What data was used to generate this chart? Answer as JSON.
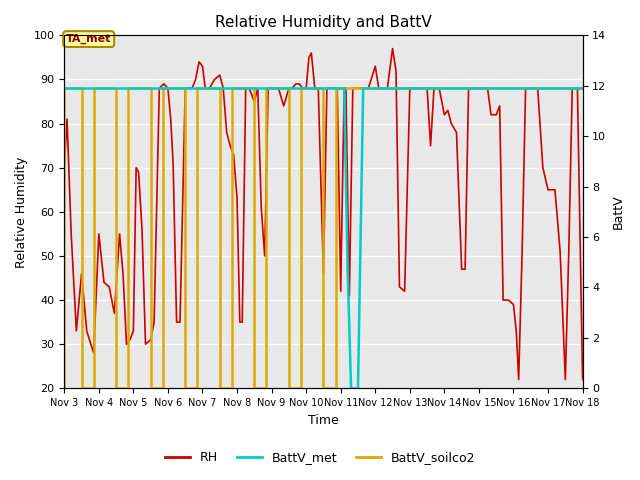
{
  "title": "Relative Humidity and BattV",
  "ylabel_left": "Relative Humidity",
  "ylabel_right": "BattV",
  "xlabel": "Time",
  "ylim_left": [
    20,
    100
  ],
  "ylim_right": [
    0,
    14
  ],
  "fig_bg_color": "#ffffff",
  "plot_bg_color": "#e8e8e8",
  "annotation_text": "TA_met",
  "annotation_color": "#880000",
  "annotation_bg": "#ffff99",
  "annotation_edge": "#aa8800",
  "rh_color": "#cc0000",
  "battv_met_color": "#00cccc",
  "battv_soilco2_color": "#ddaa00",
  "grid_color": "#ffffff",
  "x_tick_labels": [
    "Nov 3",
    "Nov 4",
    "Nov 5",
    "Nov 6",
    "Nov 7",
    "Nov 8",
    "Nov 9",
    "Nov 10",
    "Nov 11",
    "Nov 12",
    "Nov 13",
    "Nov 14",
    "Nov 15",
    "Nov 16",
    "Nov 17",
    "Nov 18"
  ],
  "rh_x": [
    3.0,
    3.08,
    3.2,
    3.35,
    3.5,
    3.65,
    3.85,
    4.0,
    4.15,
    4.3,
    4.45,
    4.6,
    4.7,
    4.8,
    4.9,
    5.0,
    5.08,
    5.15,
    5.25,
    5.35,
    5.5,
    5.6,
    5.75,
    5.88,
    6.0,
    6.08,
    6.15,
    6.25,
    6.35,
    6.5,
    6.6,
    6.7,
    6.8,
    6.9,
    7.0,
    7.08,
    7.2,
    7.35,
    7.5,
    7.6,
    7.7,
    7.8,
    7.9,
    8.0,
    8.08,
    8.15,
    8.25,
    8.35,
    8.5,
    8.6,
    8.7,
    8.8,
    8.9,
    9.0,
    9.08,
    9.2,
    9.35,
    9.5,
    9.6,
    9.7,
    9.8,
    9.9,
    10.0,
    10.08,
    10.15,
    10.25,
    10.35,
    10.5,
    10.6,
    10.7,
    10.8,
    10.9,
    11.0,
    11.1,
    11.15,
    11.25,
    11.35,
    11.5,
    11.6,
    11.7,
    11.8,
    12.0,
    12.1,
    12.2,
    12.35,
    12.5,
    12.6,
    12.7,
    12.85,
    13.0,
    13.1,
    13.2,
    13.35,
    13.5,
    13.6,
    13.7,
    13.85,
    14.0,
    14.1,
    14.2,
    14.35,
    14.5,
    14.6,
    14.7,
    14.85,
    15.0,
    15.08,
    15.15,
    15.25,
    15.35,
    15.5,
    15.6,
    15.7,
    15.85,
    16.0,
    16.08,
    16.15,
    16.25,
    16.35,
    16.5,
    16.6,
    16.7,
    16.85,
    17.0,
    17.08,
    17.2,
    17.35,
    17.5,
    17.6,
    17.7,
    17.85,
    18.0
  ],
  "rh_y": [
    70,
    81,
    55,
    33,
    46,
    33,
    28,
    55,
    44,
    43,
    37,
    55,
    46,
    30,
    31,
    33,
    70,
    69,
    56,
    30,
    31,
    35,
    88,
    89,
    88,
    81,
    71,
    35,
    35,
    88,
    88,
    88,
    90,
    94,
    93,
    88,
    88,
    90,
    91,
    88,
    78,
    75,
    73,
    63,
    35,
    35,
    88,
    88,
    85,
    88,
    61,
    50,
    88,
    88,
    88,
    88,
    84,
    88,
    88,
    89,
    89,
    88,
    88,
    95,
    96,
    88,
    88,
    46,
    88,
    88,
    88,
    88,
    42,
    88,
    88,
    41,
    88,
    88,
    88,
    88,
    88,
    93,
    88,
    88,
    88,
    97,
    92,
    43,
    42,
    88,
    88,
    88,
    88,
    88,
    75,
    88,
    88,
    82,
    83,
    80,
    78,
    47,
    47,
    88,
    88,
    88,
    88,
    88,
    88,
    82,
    82,
    84,
    40,
    40,
    39,
    33,
    22,
    51,
    88,
    88,
    88,
    88,
    70,
    65,
    65,
    65,
    51,
    22,
    51,
    88,
    88,
    22
  ],
  "battv_met_segments": [
    {
      "x": [
        3.0,
        11.1
      ],
      "y": [
        88,
        88
      ]
    },
    {
      "x": [
        11.1,
        11.2
      ],
      "y": [
        88,
        47
      ]
    },
    {
      "x": [
        11.2,
        11.3
      ],
      "y": [
        47,
        20
      ]
    },
    {
      "x": [
        11.3,
        11.5
      ],
      "y": [
        20,
        20
      ]
    },
    {
      "x": [
        11.5,
        11.65
      ],
      "y": [
        20,
        88
      ]
    },
    {
      "x": [
        11.65,
        18.0
      ],
      "y": [
        88,
        88
      ]
    }
  ],
  "battv_soilco2_x": [
    3.0,
    3.0,
    3.5,
    3.5,
    3.85,
    3.85,
    4.5,
    4.5,
    4.85,
    4.85,
    5.5,
    5.5,
    5.85,
    5.85,
    6.5,
    6.5,
    6.85,
    6.85,
    7.5,
    7.5,
    7.85,
    7.85,
    8.5,
    8.5,
    8.85,
    8.85,
    9.5,
    9.5,
    9.85,
    9.85,
    10.5,
    10.5,
    10.85,
    10.85,
    11.0,
    11.0,
    18.0
  ],
  "battv_soilco2_y": [
    20,
    88,
    88,
    20,
    20,
    88,
    88,
    20,
    20,
    88,
    88,
    20,
    20,
    88,
    88,
    20,
    20,
    88,
    88,
    20,
    20,
    88,
    88,
    20,
    20,
    88,
    88,
    20,
    20,
    88,
    88,
    20,
    20,
    88,
    88,
    88,
    88
  ]
}
